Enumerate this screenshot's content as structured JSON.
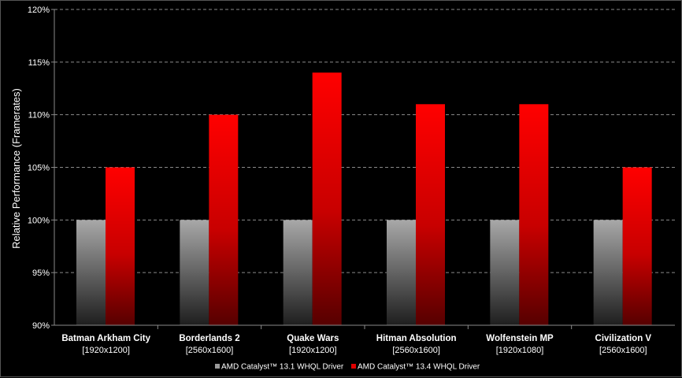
{
  "chart_data": {
    "type": "bar",
    "title": "",
    "ylabel": "Relative Performance (Framerates)",
    "xlabel": "",
    "ylim": [
      90,
      120
    ],
    "y_ticks": [
      "90%",
      "95%",
      "100%",
      "105%",
      "110%",
      "115%",
      "120%"
    ],
    "grid": "horizontal dashed",
    "legend_position": "bottom-center",
    "categories": [
      {
        "name": "Batman Arkham City",
        "sub": "[1920x1200]"
      },
      {
        "name": "Borderlands 2",
        "sub": "[2560x1600]"
      },
      {
        "name": "Quake Wars",
        "sub": "[1920x1200]"
      },
      {
        "name": "Hitman Absolution",
        "sub": "[2560x1600]"
      },
      {
        "name": "Wolfenstein MP",
        "sub": "[1920x1080]"
      },
      {
        "name": "Civilization V",
        "sub": "[2560x1600]"
      }
    ],
    "series": [
      {
        "name": "AMD Catalyst™ 13.1 WHQL Driver",
        "color": "#9a9a9a",
        "values": [
          100,
          100,
          100,
          100,
          100,
          100
        ]
      },
      {
        "name": "AMD Catalyst™ 13.4 WHQL Driver",
        "color": "#e00000",
        "values": [
          105,
          110,
          114,
          111,
          111,
          105
        ]
      }
    ]
  }
}
